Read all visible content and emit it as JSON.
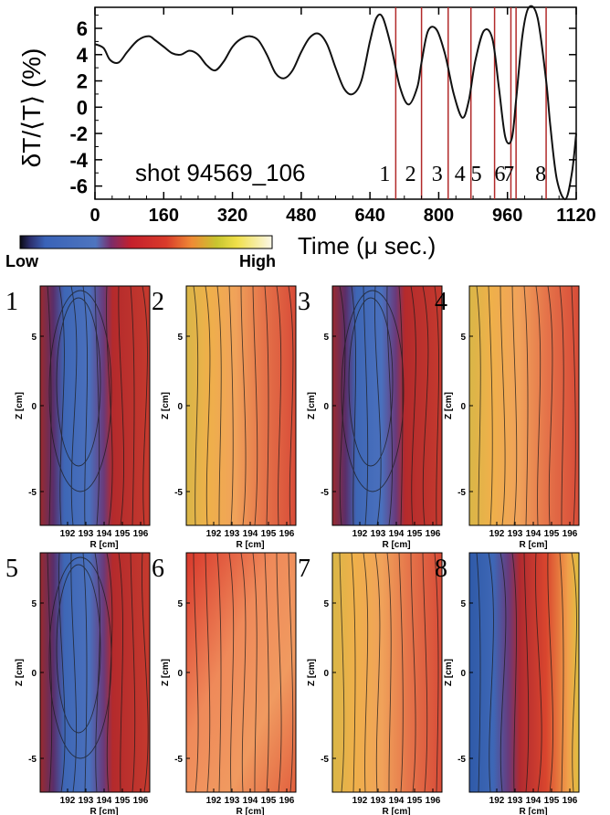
{
  "chart_data": [
    {
      "type": "line",
      "annotation": "shot 94569_106",
      "xlabel": "Time (μ sec.)",
      "ylabel": "δT/⟨T⟩ (%)",
      "xlim": [
        0,
        1120
      ],
      "ylim": [
        -7,
        7.6
      ],
      "xticks": [
        "0",
        "160",
        "320",
        "480",
        "640",
        "800",
        "960",
        "1120"
      ],
      "yticks": [
        "6",
        "4",
        "2",
        "0",
        "-2",
        "-4",
        "-6"
      ],
      "series": [
        {
          "x": [
            0,
            20,
            35,
            55,
            75,
            100,
            125,
            140,
            160,
            180,
            200,
            220,
            240,
            260,
            280,
            300,
            320,
            340,
            360,
            380,
            400,
            420,
            440,
            460,
            480,
            500,
            520,
            540,
            560,
            580,
            600,
            620,
            640,
            655,
            670,
            690,
            710,
            730,
            750,
            760,
            775,
            795,
            815,
            835,
            855,
            870,
            885,
            905,
            925,
            940,
            955,
            970,
            980,
            995,
            1010,
            1030,
            1050,
            1060,
            1075,
            1095,
            1110,
            1120
          ],
          "y": [
            4.8,
            4.5,
            3.6,
            3.4,
            4.2,
            5.1,
            5.4,
            5.1,
            4.6,
            4.1,
            4.0,
            4.3,
            4.0,
            3.2,
            2.8,
            3.5,
            4.6,
            5.2,
            5.4,
            5.1,
            4.0,
            2.6,
            2.2,
            2.8,
            4.2,
            5.3,
            5.6,
            4.8,
            3.0,
            1.4,
            1.0,
            2.0,
            5.0,
            6.8,
            6.8,
            4.5,
            1.5,
            0.2,
            1.5,
            3.4,
            5.8,
            5.9,
            4.0,
            1.0,
            -0.8,
            0.5,
            3.5,
            5.8,
            5.2,
            1.5,
            -2.3,
            -2.4,
            0.5,
            5.5,
            7.6,
            6.8,
            2.0,
            -1.5,
            -5.5,
            -7.0,
            -5.0,
            -2.0
          ]
        }
      ],
      "markers": {
        "color": "#b22a2a",
        "x": [
          700,
          760,
          822,
          875,
          930,
          968,
          980,
          1050
        ],
        "labels": [
          "1",
          "2",
          "3",
          "4",
          "5",
          "6",
          "7",
          "8"
        ]
      }
    },
    {
      "type": "heatmap",
      "colorbar": {
        "low_label": "Low",
        "high_label": "High"
      },
      "xlabel": "R [cm]",
      "ylabel": "Z [cm]",
      "xticks": [
        "192",
        "193",
        "194",
        "195",
        "196"
      ],
      "yticks": [
        "5",
        "0",
        "-5"
      ],
      "panels": [
        {
          "label": "1",
          "dominant_level": "low"
        },
        {
          "label": "2",
          "dominant_level": "high"
        },
        {
          "label": "3",
          "dominant_level": "low"
        },
        {
          "label": "4",
          "dominant_level": "high"
        },
        {
          "label": "5",
          "dominant_level": "low"
        },
        {
          "label": "6",
          "dominant_level": "medium"
        },
        {
          "label": "7",
          "dominant_level": "high"
        },
        {
          "label": "8",
          "dominant_level": "low"
        }
      ]
    }
  ]
}
